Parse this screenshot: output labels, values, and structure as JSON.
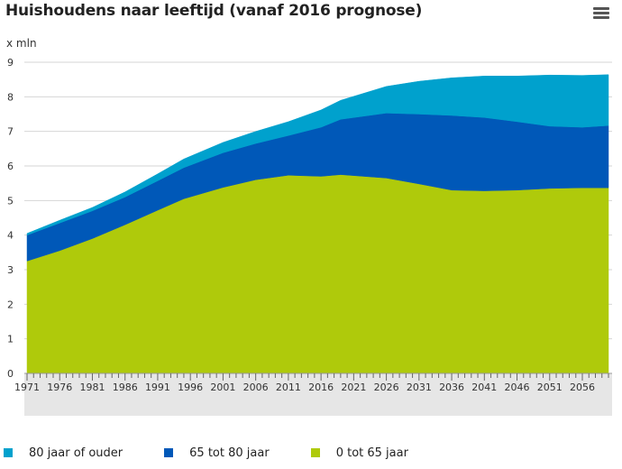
{
  "header": {
    "title": "Huishoudens naar leeftijd (vanaf 2016 prognose)",
    "menu_icon": "hamburger-menu-icon"
  },
  "chart_data": {
    "type": "area",
    "stacked": true,
    "title": "Huishoudens naar leeftijd (vanaf 2016 prognose)",
    "ylabel": "x mln",
    "xlabel": "",
    "ylim": [
      0,
      9
    ],
    "yticks": [
      0,
      1,
      2,
      3,
      4,
      5,
      6,
      7,
      8,
      9
    ],
    "xticks": [
      "1971",
      "1976",
      "1981",
      "1986",
      "1991",
      "1996",
      "2001",
      "2006",
      "2011",
      "2016",
      "2021",
      "2026",
      "2031",
      "2036",
      "2041",
      "2046",
      "2051",
      "2056"
    ],
    "x": [
      1971,
      1976,
      1981,
      1986,
      1991,
      1995,
      2001,
      2006,
      2011,
      2016,
      2019,
      2026,
      2031,
      2036,
      2041,
      2046,
      2051,
      2056,
      2060
    ],
    "series": [
      {
        "name": "0 tot 65 jaar",
        "color": "#afca0b",
        "values": [
          3.25,
          3.55,
          3.9,
          4.3,
          4.72,
          5.05,
          5.38,
          5.6,
          5.73,
          5.7,
          5.75,
          5.65,
          5.48,
          5.3,
          5.28,
          5.3,
          5.35,
          5.37,
          5.37
        ]
      },
      {
        "name": "65 tot 80 jaar",
        "color": "#0058b8",
        "values": [
          0.75,
          0.8,
          0.8,
          0.8,
          0.85,
          0.9,
          1.0,
          1.05,
          1.15,
          1.42,
          1.6,
          1.88,
          2.02,
          2.16,
          2.12,
          1.98,
          1.8,
          1.75,
          1.8
        ]
      },
      {
        "name": "80 jaar of ouder",
        "color": "#00a1cd",
        "values": [
          0.05,
          0.08,
          0.1,
          0.15,
          0.2,
          0.25,
          0.3,
          0.35,
          0.4,
          0.5,
          0.55,
          0.77,
          0.95,
          1.09,
          1.2,
          1.32,
          1.48,
          1.5,
          1.47
        ]
      }
    ],
    "legend_position": "bottom-left"
  }
}
